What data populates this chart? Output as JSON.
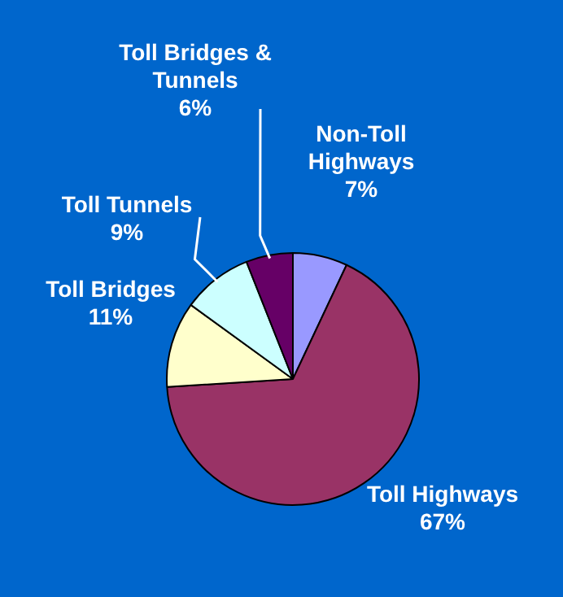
{
  "chart_data": {
    "type": "pie",
    "categories": [
      "Non-Toll Highways",
      "Toll Highways",
      "Toll Bridges",
      "Toll Tunnels",
      "Toll Bridges & Tunnels"
    ],
    "values": [
      7,
      67,
      11,
      9,
      6
    ],
    "colors": [
      "#9999ff",
      "#993366",
      "#ffffcc",
      "#ccffff",
      "#660066"
    ],
    "value_labels": [
      "7%",
      "67%",
      "11%",
      "9%",
      "6%"
    ],
    "legend": false
  }
}
